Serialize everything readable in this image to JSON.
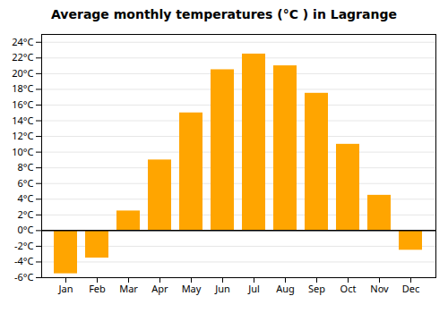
{
  "chart_data": {
    "type": "bar",
    "title": "Average monthly temperatures (°C ) in Lagrange",
    "categories": [
      "Jan",
      "Feb",
      "Mar",
      "Apr",
      "May",
      "Jun",
      "Jul",
      "Aug",
      "Sep",
      "Oct",
      "Nov",
      "Dec"
    ],
    "values": [
      -5.5,
      -3.5,
      2.5,
      9.0,
      15.0,
      20.5,
      22.5,
      21.0,
      17.5,
      11.0,
      4.5,
      -2.5
    ],
    "color": "#FFA500",
    "ylim": [
      -6,
      25
    ],
    "yticks": [
      {
        "value": -6,
        "label": "-6°C"
      },
      {
        "value": -4,
        "label": "-4°C"
      },
      {
        "value": -2,
        "label": "-2°C"
      },
      {
        "value": 0,
        "label": "0°C"
      },
      {
        "value": 2,
        "label": "2°C"
      },
      {
        "value": 4,
        "label": "4°C"
      },
      {
        "value": 6,
        "label": "6°C"
      },
      {
        "value": 8,
        "label": "8°C"
      },
      {
        "value": 10,
        "label": "10°C"
      },
      {
        "value": 12,
        "label": "12°C"
      },
      {
        "value": 14,
        "label": "14°C"
      },
      {
        "value": 16,
        "label": "16°C"
      },
      {
        "value": 18,
        "label": "18°C"
      },
      {
        "value": 20,
        "label": "20°C"
      },
      {
        "value": 22,
        "label": "22°C"
      },
      {
        "value": 24,
        "label": "24°C"
      }
    ],
    "grid": true
  }
}
